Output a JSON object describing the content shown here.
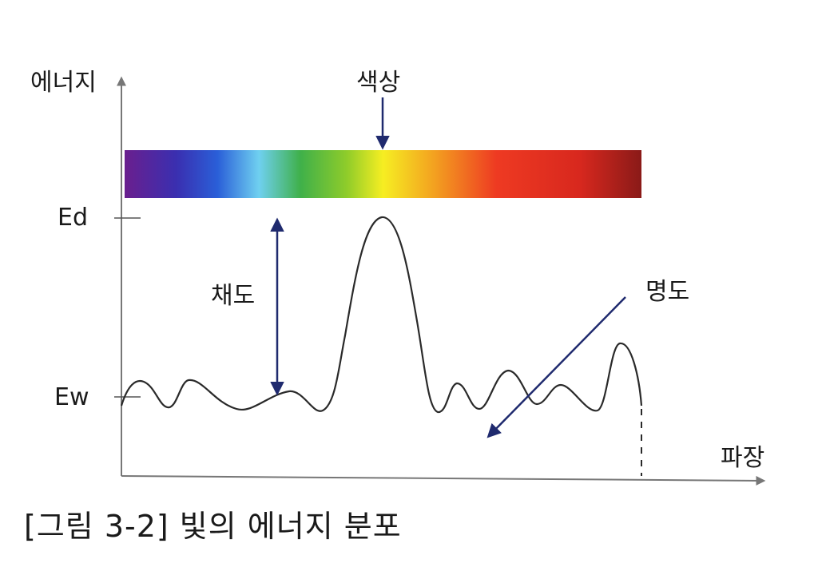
{
  "axes": {
    "y_label": "에너지",
    "x_label": "파장",
    "tick_high": "Ed",
    "tick_low": "Ew"
  },
  "annotations": {
    "hue": "색상",
    "saturation": "채도",
    "brightness": "명도"
  },
  "spectrum_colors": [
    "#6a1f8e",
    "#3a2fb0",
    "#2a5fd8",
    "#6fd0f0",
    "#3fb04a",
    "#8fcc2a",
    "#f6ee22",
    "#f3a020",
    "#ee3a22",
    "#d8281e",
    "#8a1a18"
  ],
  "colors": {
    "axis": "#777777",
    "curve": "#2a2a2a",
    "arrow": "#1f2a6e"
  },
  "caption": "[그림 3-2] 빛의 에너지 분포"
}
